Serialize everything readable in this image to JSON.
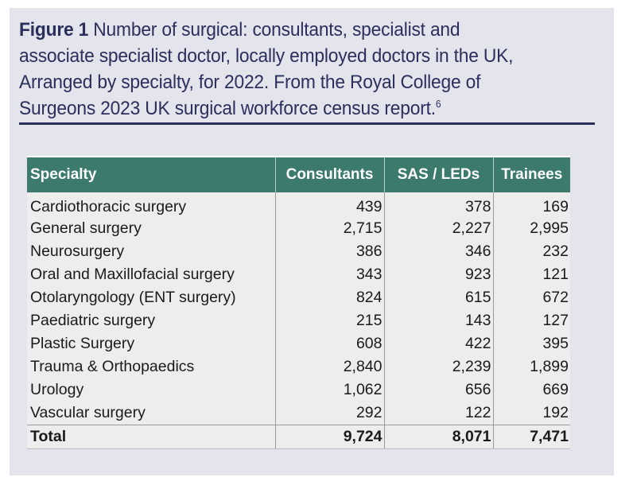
{
  "caption": {
    "label": "Figure 1",
    "text": " Number of surgical: consultants, specialist and associate specialist doctor, locally employed doctors in the UK, Arranged by specialty, for 2022. From the Royal College of Surgeons 2023 UK surgical workforce census report.",
    "footnote": "6"
  },
  "table": {
    "headers": [
      "Specialty",
      "Consultants",
      "SAS / LEDs",
      "Trainees"
    ],
    "rows": [
      [
        "Cardiothoracic surgery",
        "439",
        "378",
        "169"
      ],
      [
        "General surgery",
        "2,715",
        "2,227",
        "2,995"
      ],
      [
        "Neurosurgery",
        "386",
        "346",
        "232"
      ],
      [
        "Oral and Maxillofacial surgery",
        "343",
        "923",
        "121"
      ],
      [
        "Otolaryngology (ENT surgery)",
        "824",
        "615",
        "672"
      ],
      [
        "Paediatric surgery",
        "215",
        "143",
        "127"
      ],
      [
        "Plastic Surgery",
        "608",
        "422",
        "395"
      ],
      [
        "Trauma & Orthopaedics",
        "2,840",
        "2,239",
        "1,899"
      ],
      [
        "Urology",
        "1,062",
        "656",
        "669"
      ],
      [
        "Vascular surgery",
        "292",
        "122",
        "192"
      ]
    ],
    "total": [
      "Total",
      "9,724",
      "8,071",
      "7,471"
    ]
  },
  "colors": {
    "header_bg": "#3c7a6e",
    "panel_bg": "#e3e4ec",
    "caption_text": "#2b2f5c"
  }
}
